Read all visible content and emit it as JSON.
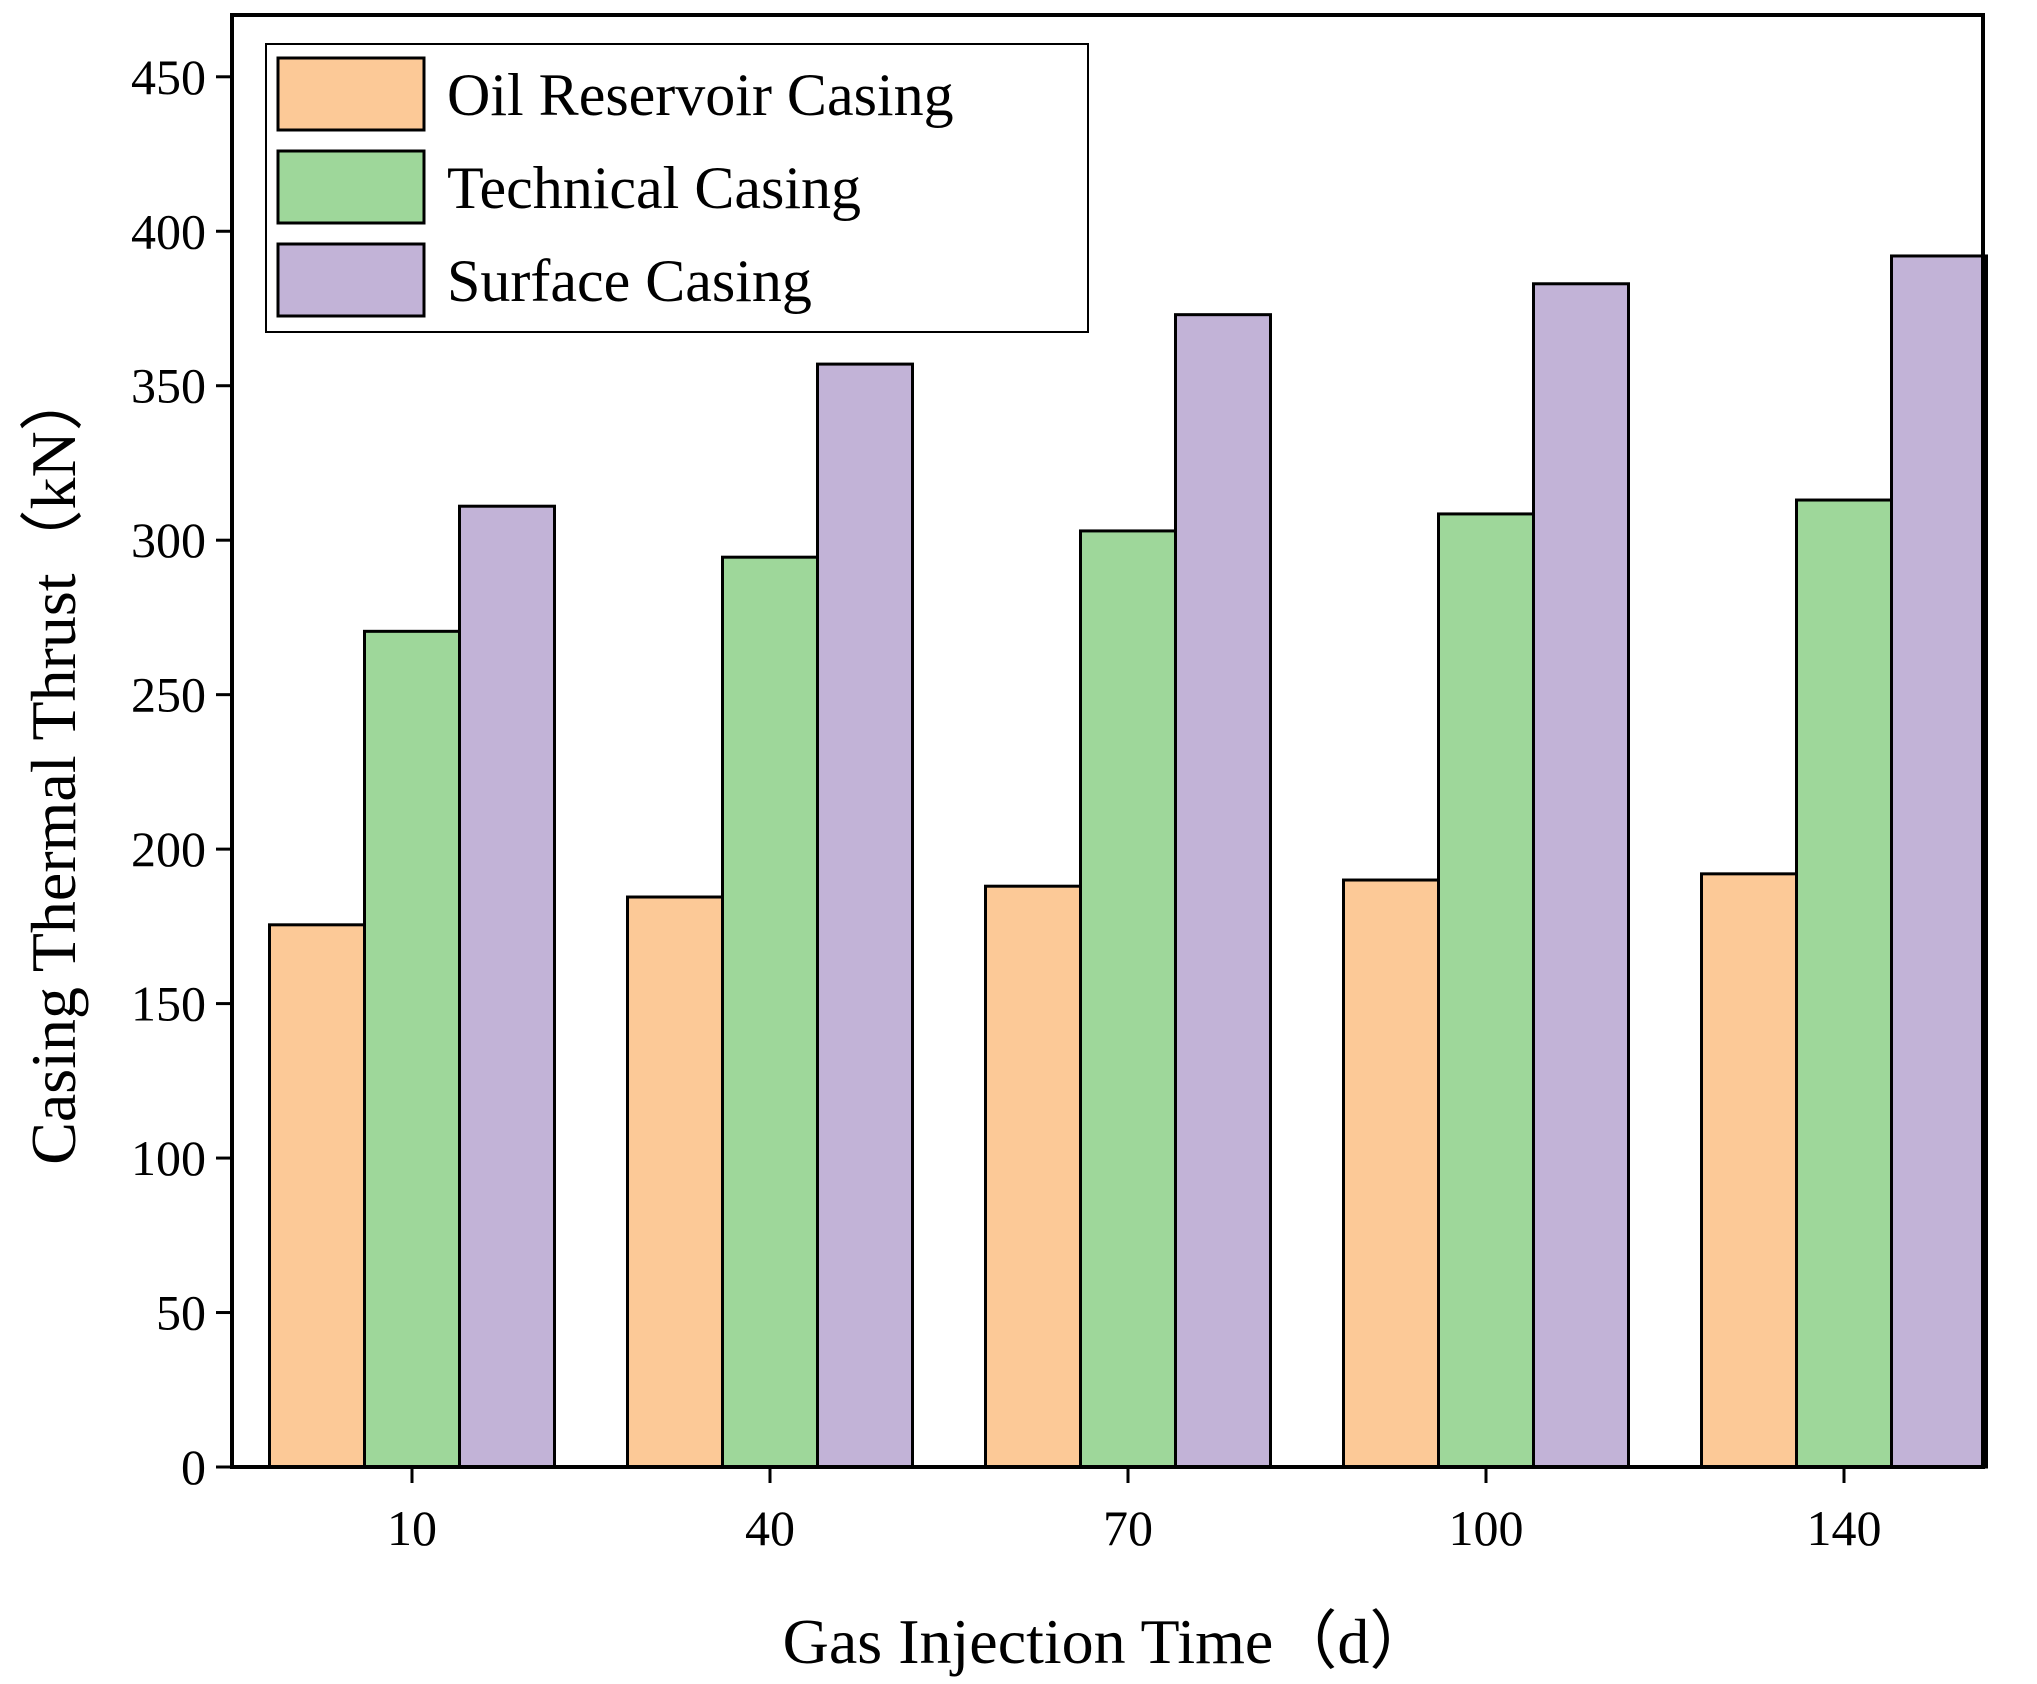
{
  "chart_data": {
    "type": "bar",
    "title": "",
    "xlabel": "Gas Injection Time（d）",
    "ylabel": "Casing Thermal Thrust（kN）",
    "categories": [
      "10",
      "40",
      "70",
      "100",
      "140"
    ],
    "ylim": [
      0,
      470
    ],
    "yticks": [
      0,
      50,
      100,
      150,
      200,
      250,
      300,
      350,
      400,
      450
    ],
    "grid": false,
    "legend_position": "top-left",
    "series": [
      {
        "name": "Oil Reservoir Casing",
        "color": "#FCC997",
        "values": [
          175.5,
          184.5,
          188,
          190,
          192
        ]
      },
      {
        "name": "Technical Casing",
        "color": "#9ED79A",
        "values": [
          270.5,
          294.5,
          303,
          308.5,
          313
        ]
      },
      {
        "name": "Surface Casing",
        "color": "#C2B3D7",
        "values": [
          311,
          357,
          373,
          383,
          392
        ]
      }
    ]
  }
}
